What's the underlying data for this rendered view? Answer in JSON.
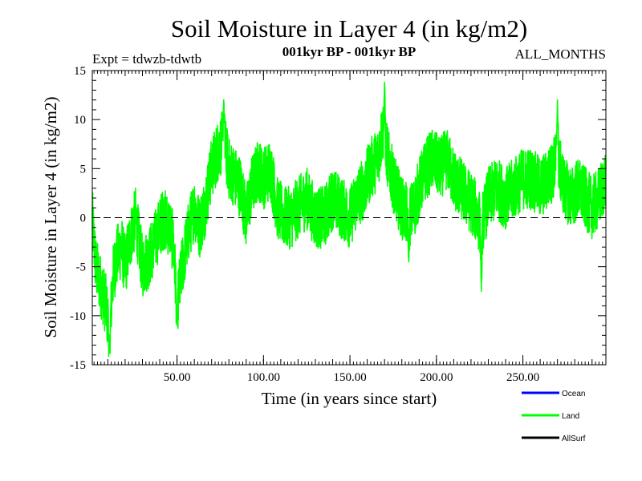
{
  "chart_data": {
    "type": "line",
    "title": "Soil Moisture in Layer 4 (in kg/m2)",
    "subtitle": "001kyr BP - 001kyr BP",
    "left_label": "Expt = tdwzb-tdwtb",
    "right_label": "ALL_MONTHS",
    "xlabel": "Time (in years since start)",
    "ylabel": "Soil Moisture in Layer 4 (in kg/m2)",
    "xlim": [
      1,
      298
    ],
    "ylim": [
      -15,
      15
    ],
    "x_ticks": [
      50,
      100,
      150,
      200,
      250
    ],
    "x_tick_labels": [
      "50.00",
      "100.00",
      "150.00",
      "200.00",
      "250.00"
    ],
    "y_ticks": [
      -15,
      -10,
      -5,
      0,
      5,
      10,
      15
    ],
    "y_tick_labels": [
      "-15",
      "-10",
      "-5",
      "0",
      "5",
      "10",
      "15"
    ],
    "zero_line": "dashed",
    "anchors": [
      [
        1,
        0
      ],
      [
        3,
        -5
      ],
      [
        6,
        -7
      ],
      [
        9,
        -9
      ],
      [
        11,
        -12
      ],
      [
        13,
        -6
      ],
      [
        15,
        -4
      ],
      [
        18,
        -3
      ],
      [
        20,
        -5
      ],
      [
        23,
        -2
      ],
      [
        26,
        0
      ],
      [
        30,
        -5
      ],
      [
        34,
        -4
      ],
      [
        38,
        -2
      ],
      [
        42,
        0
      ],
      [
        46,
        -1
      ],
      [
        48,
        -3
      ],
      [
        50,
        -9
      ],
      [
        53,
        -5
      ],
      [
        56,
        -2
      ],
      [
        60,
        1
      ],
      [
        63,
        -1
      ],
      [
        66,
        1
      ],
      [
        68,
        3
      ],
      [
        70,
        5
      ],
      [
        74,
        7
      ],
      [
        77,
        8
      ],
      [
        80,
        5
      ],
      [
        84,
        4
      ],
      [
        87,
        3
      ],
      [
        90,
        0
      ],
      [
        93,
        3
      ],
      [
        97,
        5
      ],
      [
        100,
        4
      ],
      [
        104,
        5
      ],
      [
        108,
        1
      ],
      [
        112,
        0
      ],
      [
        116,
        0
      ],
      [
        120,
        1
      ],
      [
        125,
        2
      ],
      [
        130,
        0
      ],
      [
        135,
        0
      ],
      [
        140,
        2
      ],
      [
        145,
        1
      ],
      [
        150,
        0
      ],
      [
        154,
        2
      ],
      [
        158,
        3
      ],
      [
        162,
        5
      ],
      [
        166,
        6
      ],
      [
        169,
        9
      ],
      [
        172,
        6
      ],
      [
        176,
        3
      ],
      [
        180,
        1
      ],
      [
        184,
        0
      ],
      [
        187,
        1
      ],
      [
        190,
        3
      ],
      [
        194,
        5
      ],
      [
        198,
        6
      ],
      [
        202,
        5
      ],
      [
        206,
        6
      ],
      [
        210,
        4
      ],
      [
        214,
        3
      ],
      [
        218,
        2
      ],
      [
        222,
        1
      ],
      [
        226,
        -1
      ],
      [
        230,
        2
      ],
      [
        235,
        3
      ],
      [
        240,
        2
      ],
      [
        245,
        3
      ],
      [
        250,
        4
      ],
      [
        255,
        4
      ],
      [
        260,
        3
      ],
      [
        265,
        4
      ],
      [
        270,
        6
      ],
      [
        274,
        3
      ],
      [
        278,
        2
      ],
      [
        282,
        3
      ],
      [
        286,
        2
      ],
      [
        290,
        1
      ],
      [
        294,
        2
      ],
      [
        298,
        4
      ]
    ],
    "noise_amplitude": 3.2,
    "spikes": [
      [
        77,
        12
      ],
      [
        170,
        13.8
      ],
      [
        11,
        -13.5
      ],
      [
        50,
        -11
      ],
      [
        184,
        -4.5
      ],
      [
        226,
        -7.5
      ],
      [
        270,
        12
      ]
    ],
    "series": [
      {
        "name": "Ocean",
        "color": "#0000ff"
      },
      {
        "name": "Land",
        "color": "#00ff00"
      },
      {
        "name": "AllSurf",
        "color": "#000000"
      }
    ]
  }
}
